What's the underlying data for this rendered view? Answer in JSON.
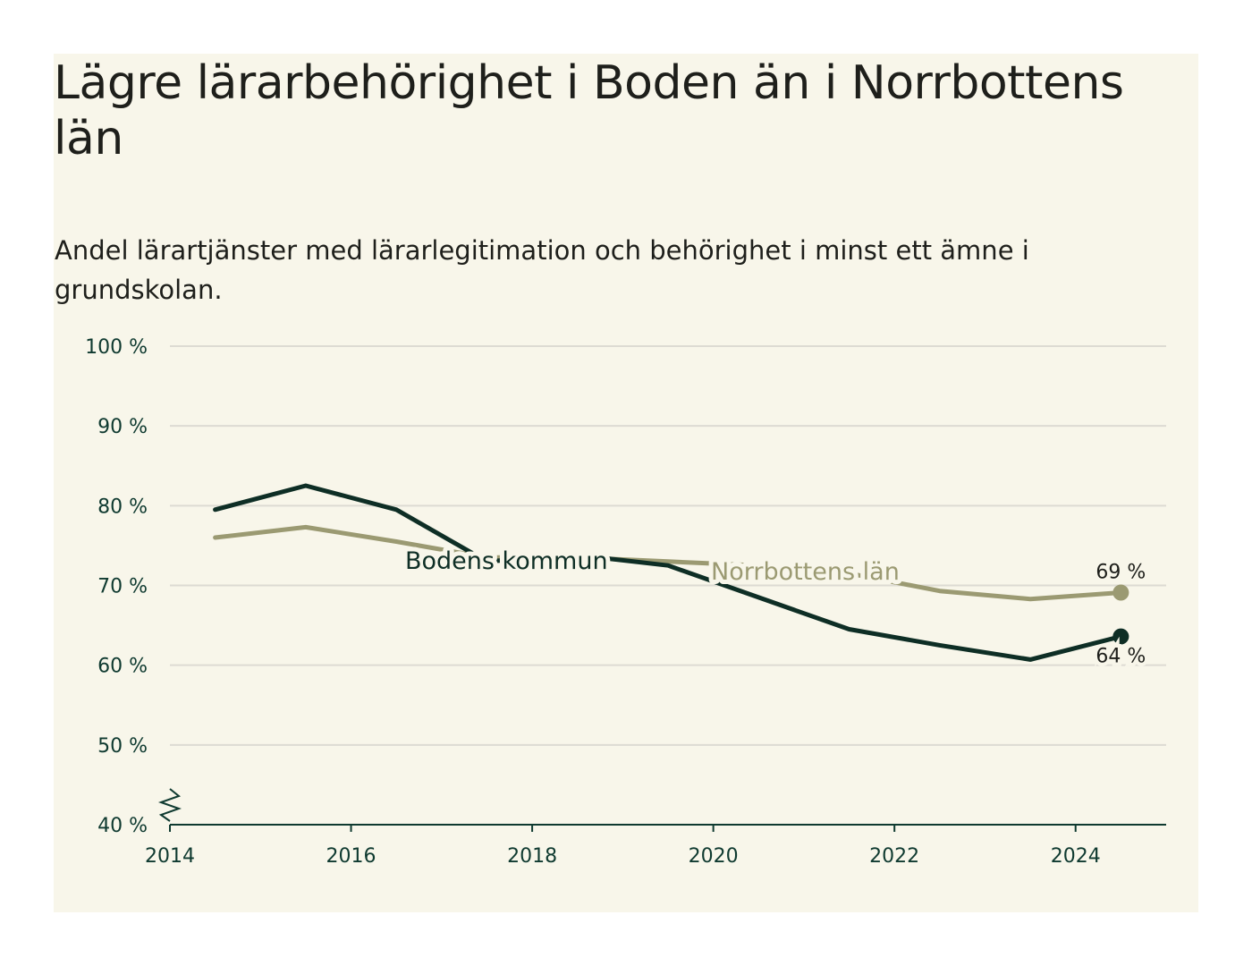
{
  "title": "Lägre lärarbehörighet i Boden än i Norrbottens län",
  "subtitle": "Andel lärartjänster med lärarlegitimation och behörighet i minst ett ämne i grundskolan.",
  "colors": {
    "background": "#f8f6ea",
    "boden": "#0e2e25",
    "norrbotten": "#9b9a72",
    "grid": "#dddbd3",
    "axis": "#0f3a30"
  },
  "chart_data": {
    "type": "line",
    "x": [
      2014.5,
      2015.5,
      2016.5,
      2017.5,
      2018.5,
      2019.5,
      2020.5,
      2021.5,
      2022.5,
      2023.5,
      2024.5
    ],
    "series": [
      {
        "name": "Bodens kommun",
        "values": [
          79.5,
          82.5,
          79.5,
          73.0,
          73.8,
          72.5,
          68.5,
          64.5,
          62.5,
          60.7,
          63.6
        ],
        "end_label": "64 %"
      },
      {
        "name": "Norrbottens län",
        "values": [
          76.0,
          77.3,
          75.5,
          73.5,
          73.5,
          73.0,
          72.5,
          71.5,
          69.3,
          68.3,
          69.1
        ],
        "end_label": "69 %"
      }
    ],
    "xlim": [
      2014,
      2025
    ],
    "ylim": [
      40,
      100
    ],
    "x_ticks": [
      "2014",
      "2016",
      "2018",
      "2020",
      "2022",
      "2024"
    ],
    "x_tick_values": [
      2014,
      2016,
      2018,
      2020,
      2022,
      2024
    ],
    "y_ticks": [
      "40 %",
      "50 %",
      "60 %",
      "70 %",
      "80 %",
      "90 %",
      "100 %"
    ],
    "y_tick_values": [
      40,
      50,
      60,
      70,
      80,
      90,
      100
    ],
    "grid": true,
    "axis_break": true,
    "legend": "inline labels"
  }
}
